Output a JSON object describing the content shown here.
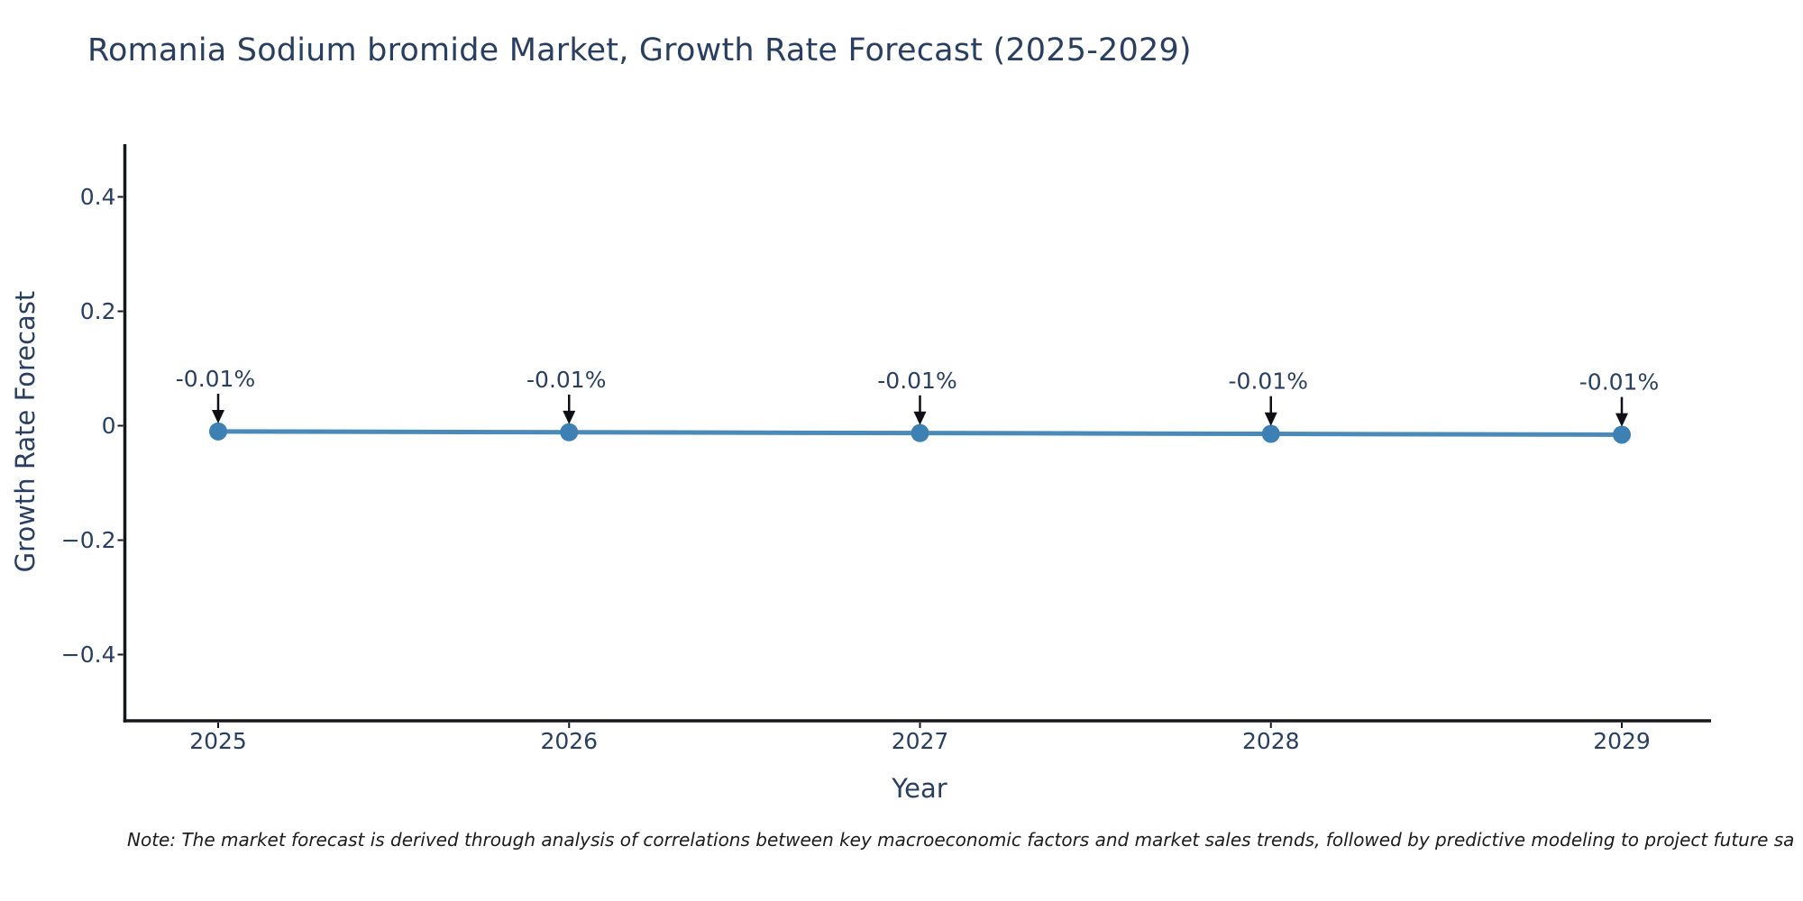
{
  "title": "Romania Sodium bromide Market, Growth Rate Forecast (2025-2029)",
  "note": "Note: The market forecast is derived through analysis of correlations between key macroeconomic factors and market sales trends, followed by predictive modeling to project future sa",
  "colors": {
    "text": "#2a3f5f",
    "axis_line": "#16161d",
    "series_line": "#4a8ab8",
    "marker_fill": "#3d80b4",
    "arrow": "#0f0f16",
    "note_text": "#1c1c1c",
    "background": "#ffffff"
  },
  "chart_data": {
    "type": "line",
    "title": "Romania Sodium bromide Market, Growth Rate Forecast (2025-2029)",
    "xlabel": "Year",
    "ylabel": "Growth Rate Forecast",
    "x": [
      2025,
      2026,
      2027,
      2028,
      2029
    ],
    "x_tick_labels": [
      "2025",
      "2026",
      "2027",
      "2028",
      "2029"
    ],
    "series": [
      {
        "name": "Growth Rate Forecast",
        "values": [
          -0.01,
          -0.01,
          -0.01,
          -0.01,
          -0.01
        ],
        "point_labels": [
          "-0.01%",
          "-0.01%",
          "-0.01%",
          "-0.01%",
          "-0.01%"
        ]
      }
    ],
    "y_ticks": [
      0.4,
      0.2,
      0,
      -0.2,
      -0.4
    ],
    "y_tick_labels": [
      "0.4",
      "0.2",
      "0",
      "−0.2",
      "−0.4"
    ],
    "ylim": [
      -0.52,
      0.49
    ],
    "grid": false,
    "legend": false,
    "marker_style": "circle",
    "annotation_arrows": true
  }
}
